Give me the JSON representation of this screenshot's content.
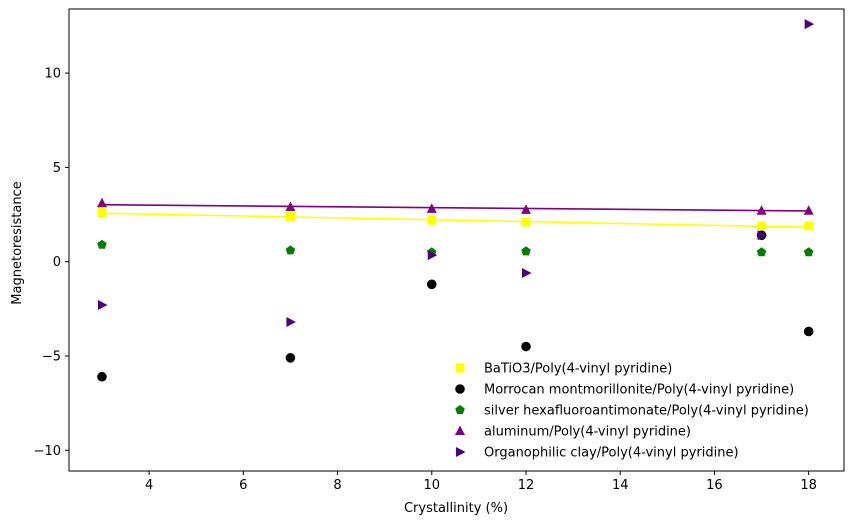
{
  "chart_data": {
    "type": "scatter",
    "title": "",
    "xlabel": "Crystallinity (%)",
    "ylabel": "Magnetoresistance",
    "xlim": [
      2.3,
      18.75
    ],
    "ylim": [
      -11.1,
      13.4
    ],
    "x_ticks": [
      4,
      6,
      8,
      10,
      12,
      14,
      16,
      18
    ],
    "y_ticks": [
      -10,
      -5,
      0,
      5,
      10
    ],
    "grid": false,
    "legend_position": "lower-right",
    "series": [
      {
        "name": "BaTiO3/Poly(4-vinyl pyridine)",
        "color": "#ffff00",
        "marker": "square",
        "x": [
          3,
          7,
          10,
          12,
          17,
          18
        ],
        "y": [
          2.6,
          2.4,
          2.2,
          2.1,
          1.9,
          1.9
        ],
        "trendline": {
          "x": [
            3,
            18
          ],
          "y": [
            2.57,
            1.83
          ]
        }
      },
      {
        "name": "Morrocan montmorillonite/Poly(4-vinyl pyridine)",
        "color": "#000000",
        "marker": "circle",
        "x": [
          3,
          7,
          10,
          12,
          17,
          18
        ],
        "y": [
          -6.1,
          -5.1,
          -1.2,
          -4.5,
          1.4,
          -3.7
        ]
      },
      {
        "name": "silver hexafluoroantimonate/Poly(4-vinyl pyridine)",
        "color": "#008000",
        "marker": "pentagon",
        "x": [
          3,
          7,
          10,
          12,
          17,
          18
        ],
        "y": [
          0.9,
          0.6,
          0.5,
          0.55,
          0.5,
          0.5
        ]
      },
      {
        "name": "aluminum/Poly(4-vinyl pyridine)",
        "color": "#800080",
        "marker": "triangle-up",
        "x": [
          3,
          7,
          10,
          12,
          17,
          18
        ],
        "y": [
          3.1,
          2.9,
          2.8,
          2.75,
          2.7,
          2.7
        ],
        "trendline": {
          "x": [
            3,
            18
          ],
          "y": [
            3.02,
            2.69
          ]
        }
      },
      {
        "name": "Organophilic clay/Poly(4-vinyl pyridine)",
        "color": "#4b0082",
        "marker": "triangle-right",
        "x": [
          3,
          7,
          10,
          12,
          17,
          18
        ],
        "y": [
          -2.3,
          -3.2,
          0.35,
          -0.6,
          1.4,
          12.6
        ]
      }
    ]
  }
}
